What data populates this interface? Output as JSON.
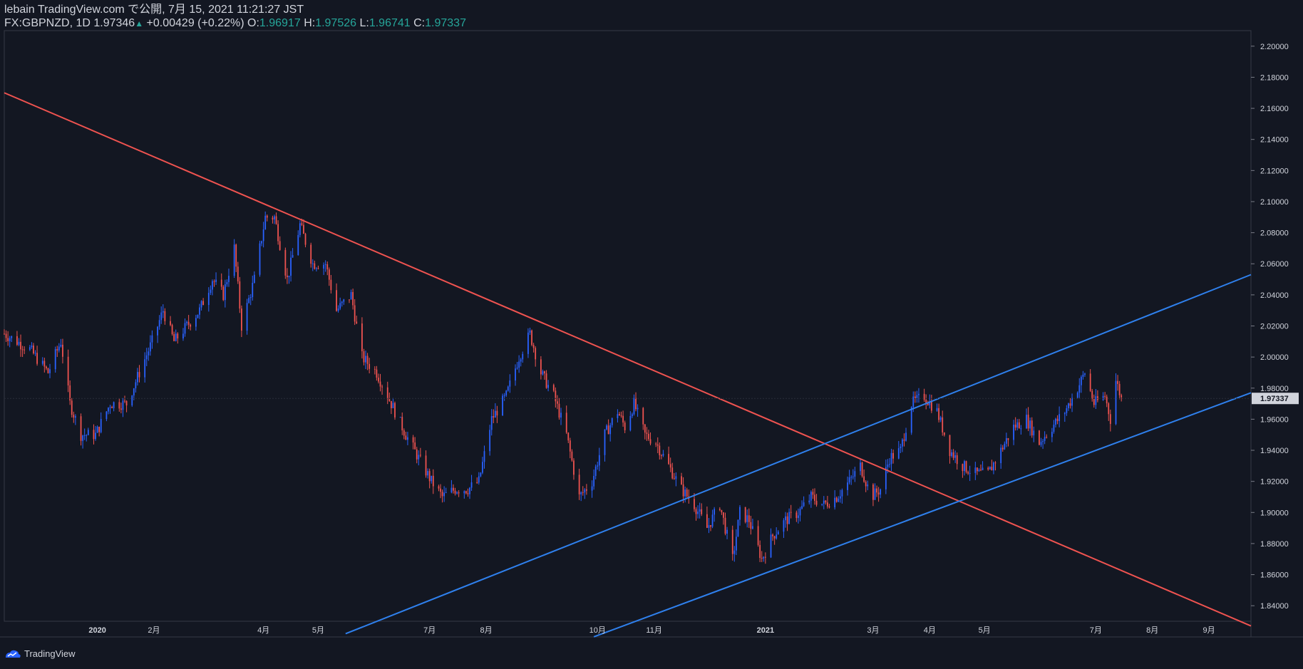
{
  "header": {
    "line1": "lebain TradingView.com で公開, 7月 15, 2021 11:21:27 JST",
    "symbol": "FX:GBPNZD, 1D",
    "last": "1.97346",
    "change": "+0.00429 (+0.22%)",
    "o_label": "O:",
    "o": "1.96917",
    "h_label": "H:",
    "h": "1.97526",
    "l_label": "L:",
    "l": "1.96741",
    "c_label": "C:",
    "c": "1.97337"
  },
  "footer": {
    "brand": "TradingView",
    "icon": "tradingview-logo-icon"
  },
  "colors": {
    "background": "#131722",
    "up": "#2962ff",
    "down": "#ef5350",
    "resistance": "#ef5350",
    "channel": "#2f80ed",
    "text": "#d1d4dc",
    "price_label_bg": "#d1d4dc"
  },
  "chart_data": {
    "type": "candlestick",
    "symbol": "FX:GBPNZD",
    "timeframe": "1D",
    "ylim": [
      1.83,
      2.21
    ],
    "xlim": [
      "2019-11-11",
      "2021-09-24"
    ],
    "y_ticks": [
      "2.20000",
      "2.18000",
      "2.16000",
      "2.14000",
      "2.12000",
      "2.10000",
      "2.08000",
      "2.06000",
      "2.04000",
      "2.02000",
      "2.00000",
      "1.98000",
      "1.96000",
      "1.94000",
      "1.92000",
      "1.90000",
      "1.88000",
      "1.86000",
      "1.84000"
    ],
    "x_ticks": [
      {
        "label": "2020",
        "date": "2020-01-01"
      },
      {
        "label": "2月",
        "date": "2020-02-01"
      },
      {
        "label": "4月",
        "date": "2020-04-01"
      },
      {
        "label": "5月",
        "date": "2020-05-01"
      },
      {
        "label": "7月",
        "date": "2020-07-01"
      },
      {
        "label": "8月",
        "date": "2020-08-01"
      },
      {
        "label": "10月",
        "date": "2020-10-01"
      },
      {
        "label": "11月",
        "date": "2020-11-01"
      },
      {
        "label": "2021",
        "date": "2021-01-01"
      },
      {
        "label": "3月",
        "date": "2021-03-01"
      },
      {
        "label": "4月",
        "date": "2021-04-01"
      },
      {
        "label": "5月",
        "date": "2021-05-01"
      },
      {
        "label": "7月",
        "date": "2021-07-01"
      },
      {
        "label": "8月",
        "date": "2021-08-01"
      },
      {
        "label": "9月",
        "date": "2021-09-01"
      }
    ],
    "last_price": "1.97337",
    "anchors": [
      [
        "2019-11-11",
        2.015
      ],
      [
        "2019-11-25",
        2.005
      ],
      [
        "2019-12-05",
        1.99
      ],
      [
        "2019-12-12",
        2.01
      ],
      [
        "2019-12-17",
        1.97
      ],
      [
        "2019-12-23",
        1.95
      ],
      [
        "2019-12-31",
        1.95
      ],
      [
        "2020-01-08",
        1.97
      ],
      [
        "2020-01-17",
        1.97
      ],
      [
        "2020-01-24",
        1.99
      ],
      [
        "2020-01-31",
        2.01
      ],
      [
        "2020-02-06",
        2.03
      ],
      [
        "2020-02-12",
        2.01
      ],
      [
        "2020-02-19",
        2.02
      ],
      [
        "2020-02-26",
        2.03
      ],
      [
        "2020-03-04",
        2.05
      ],
      [
        "2020-03-10",
        2.04
      ],
      [
        "2020-03-16",
        2.07
      ],
      [
        "2020-03-20",
        2.02
      ],
      [
        "2020-03-27",
        2.05
      ],
      [
        "2020-04-02",
        2.09
      ],
      [
        "2020-04-07",
        2.09
      ],
      [
        "2020-04-14",
        2.05
      ],
      [
        "2020-04-21",
        2.085
      ],
      [
        "2020-04-28",
        2.06
      ],
      [
        "2020-05-05",
        2.06
      ],
      [
        "2020-05-11",
        2.03
      ],
      [
        "2020-05-19",
        2.04
      ],
      [
        "2020-05-25",
        2.0
      ],
      [
        "2020-06-02",
        1.99
      ],
      [
        "2020-06-10",
        1.97
      ],
      [
        "2020-06-18",
        1.95
      ],
      [
        "2020-06-25",
        1.935
      ],
      [
        "2020-07-02",
        1.92
      ],
      [
        "2020-07-08",
        1.91
      ],
      [
        "2020-07-15",
        1.915
      ],
      [
        "2020-07-22",
        1.915
      ],
      [
        "2020-07-28",
        1.92
      ],
      [
        "2020-08-04",
        1.96
      ],
      [
        "2020-08-12",
        1.975
      ],
      [
        "2020-08-19",
        2.0
      ],
      [
        "2020-08-25",
        2.015
      ],
      [
        "2020-08-31",
        1.99
      ],
      [
        "2020-09-07",
        1.975
      ],
      [
        "2020-09-14",
        1.95
      ],
      [
        "2020-09-21",
        1.91
      ],
      [
        "2020-09-28",
        1.92
      ],
      [
        "2020-10-05",
        1.95
      ],
      [
        "2020-10-12",
        1.965
      ],
      [
        "2020-10-16",
        1.955
      ],
      [
        "2020-10-21",
        1.97
      ],
      [
        "2020-10-27",
        1.95
      ],
      [
        "2020-11-02",
        1.945
      ],
      [
        "2020-11-09",
        1.93
      ],
      [
        "2020-11-16",
        1.915
      ],
      [
        "2020-11-23",
        1.905
      ],
      [
        "2020-11-30",
        1.89
      ],
      [
        "2020-12-07",
        1.905
      ],
      [
        "2020-12-14",
        1.87
      ],
      [
        "2020-12-18",
        1.9
      ],
      [
        "2020-12-23",
        1.895
      ],
      [
        "2020-12-30",
        1.87
      ],
      [
        "2021-01-05",
        1.885
      ],
      [
        "2021-01-12",
        1.895
      ],
      [
        "2021-01-19",
        1.9
      ],
      [
        "2021-01-26",
        1.91
      ],
      [
        "2021-02-02",
        1.905
      ],
      [
        "2021-02-09",
        1.91
      ],
      [
        "2021-02-16",
        1.92
      ],
      [
        "2021-02-22",
        1.93
      ],
      [
        "2021-02-28",
        1.91
      ],
      [
        "2021-03-05",
        1.915
      ],
      [
        "2021-03-10",
        1.935
      ],
      [
        "2021-03-16",
        1.94
      ],
      [
        "2021-03-22",
        1.97
      ],
      [
        "2021-03-29",
        1.975
      ],
      [
        "2021-04-05",
        1.965
      ],
      [
        "2021-04-12",
        1.94
      ],
      [
        "2021-04-19",
        1.93
      ],
      [
        "2021-04-26",
        1.925
      ],
      [
        "2021-05-03",
        1.925
      ],
      [
        "2021-05-10",
        1.94
      ],
      [
        "2021-05-17",
        1.955
      ],
      [
        "2021-05-24",
        1.96
      ],
      [
        "2021-05-31",
        1.945
      ],
      [
        "2021-06-07",
        1.955
      ],
      [
        "2021-06-14",
        1.965
      ],
      [
        "2021-06-21",
        1.98
      ],
      [
        "2021-06-25",
        1.99
      ],
      [
        "2021-06-30",
        1.97
      ],
      [
        "2021-07-06",
        1.975
      ],
      [
        "2021-07-09",
        1.96
      ],
      [
        "2021-07-12",
        1.985
      ],
      [
        "2021-07-15",
        1.97337
      ]
    ],
    "trendlines": [
      {
        "name": "",
        "color": "#ef5350",
        "p1": [
          "2019-11-11",
          2.17
        ],
        "p2": [
          "2021-09-24",
          1.827
        ]
      },
      {
        "name": "",
        "color": "#2f80ed",
        "p1": [
          "2020-05-16",
          1.822
        ],
        "p2": [
          "2021-09-24",
          2.053
        ]
      },
      {
        "name": "",
        "color": "#2f80ed",
        "p1": [
          "2020-09-29",
          1.82
        ],
        "p2": [
          "2021-09-24",
          1.977
        ]
      }
    ]
  }
}
